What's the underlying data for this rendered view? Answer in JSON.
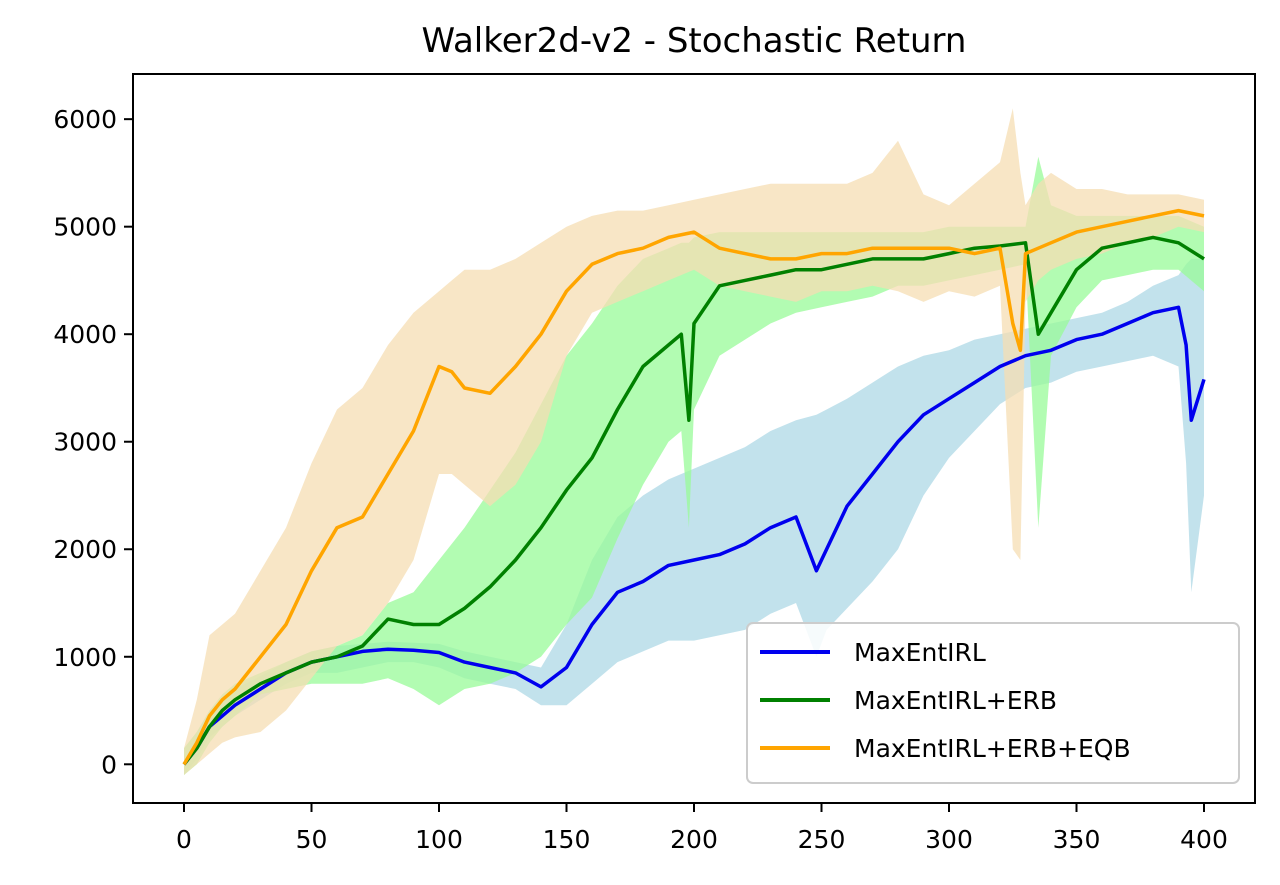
{
  "chart_data": {
    "type": "line",
    "title": "Walker2d-v2 - Stochastic Return",
    "xlabel": "",
    "ylabel": "",
    "xlim": [
      -20,
      420
    ],
    "ylim": [
      -360,
      6420
    ],
    "xticks": [
      0,
      50,
      100,
      150,
      200,
      250,
      300,
      350,
      400
    ],
    "yticks": [
      0,
      1000,
      2000,
      3000,
      4000,
      5000,
      6000
    ],
    "grid": false,
    "legend_position": "lower-right",
    "series": [
      {
        "name": "MaxEntIRL",
        "color": "#0000ee",
        "band_color": "#add8e6",
        "x": [
          0,
          5,
          10,
          15,
          20,
          30,
          40,
          50,
          60,
          70,
          80,
          90,
          100,
          110,
          120,
          130,
          140,
          150,
          160,
          170,
          180,
          190,
          200,
          210,
          220,
          230,
          240,
          248,
          252,
          260,
          270,
          280,
          290,
          300,
          310,
          320,
          330,
          340,
          350,
          360,
          370,
          380,
          390,
          393,
          395,
          400
        ],
        "y": [
          0,
          150,
          350,
          450,
          550,
          700,
          850,
          950,
          1000,
          1050,
          1070,
          1060,
          1040,
          950,
          900,
          850,
          720,
          900,
          1300,
          1600,
          1700,
          1850,
          1900,
          1950,
          2050,
          2200,
          2300,
          1800,
          2000,
          2400,
          2700,
          3000,
          3250,
          3400,
          3550,
          3700,
          3800,
          3850,
          3950,
          4000,
          4100,
          4200,
          4250,
          3900,
          3200,
          3580
        ],
        "upper": [
          150,
          300,
          500,
          600,
          700,
          820,
          950,
          1050,
          1100,
          1120,
          1140,
          1130,
          1120,
          1050,
          1000,
          950,
          900,
          1300,
          1900,
          2300,
          2500,
          2650,
          2750,
          2850,
          2950,
          3100,
          3200,
          3250,
          3300,
          3400,
          3550,
          3700,
          3800,
          3850,
          3950,
          4000,
          4050,
          4100,
          4150,
          4200,
          4300,
          4450,
          4550,
          4650,
          4700,
          4700
        ],
        "lower": [
          -100,
          50,
          250,
          350,
          450,
          600,
          750,
          850,
          850,
          900,
          950,
          950,
          900,
          800,
          750,
          700,
          550,
          550,
          750,
          950,
          1050,
          1150,
          1150,
          1200,
          1250,
          1400,
          1500,
          1000,
          1250,
          1450,
          1700,
          2000,
          2500,
          2850,
          3100,
          3350,
          3500,
          3550,
          3650,
          3700,
          3750,
          3800,
          3700,
          2800,
          1600,
          2500
        ]
      },
      {
        "name": "MaxEntIRL+ERB",
        "color": "#008000",
        "band_color": "#98fb98",
        "x": [
          0,
          5,
          10,
          15,
          20,
          30,
          40,
          50,
          60,
          70,
          80,
          90,
          100,
          110,
          120,
          130,
          140,
          150,
          160,
          170,
          180,
          190,
          195,
          198,
          200,
          210,
          220,
          230,
          240,
          250,
          260,
          270,
          280,
          290,
          300,
          310,
          320,
          330,
          335,
          340,
          350,
          360,
          370,
          380,
          390,
          400
        ],
        "y": [
          0,
          150,
          350,
          500,
          600,
          750,
          850,
          950,
          1000,
          1100,
          1350,
          1300,
          1300,
          1450,
          1650,
          1900,
          2200,
          2550,
          2850,
          3300,
          3700,
          3900,
          4000,
          3200,
          4100,
          4450,
          4500,
          4550,
          4600,
          4600,
          4650,
          4700,
          4700,
          4700,
          4750,
          4800,
          4820,
          4850,
          4000,
          4200,
          4600,
          4800,
          4850,
          4900,
          4850,
          4700
        ],
        "upper": [
          150,
          300,
          500,
          650,
          750,
          850,
          950,
          1050,
          1100,
          1200,
          1500,
          1600,
          1900,
          2200,
          2550,
          2900,
          3350,
          3800,
          4100,
          4450,
          4700,
          4800,
          4850,
          4850,
          4900,
          4950,
          4950,
          4950,
          4950,
          4950,
          4950,
          4950,
          4950,
          4950,
          5000,
          5000,
          5000,
          5000,
          5650,
          5200,
          5100,
          5100,
          5100,
          5100,
          5100,
          5000
        ],
        "lower": [
          -100,
          0,
          200,
          350,
          450,
          650,
          700,
          750,
          750,
          750,
          800,
          700,
          550,
          700,
          750,
          850,
          1000,
          1300,
          1550,
          2100,
          2600,
          3000,
          3100,
          2200,
          3300,
          3800,
          3950,
          4100,
          4200,
          4250,
          4300,
          4350,
          4450,
          4450,
          4500,
          4550,
          4600,
          4650,
          2200,
          3800,
          4250,
          4500,
          4550,
          4600,
          4600,
          4400
        ]
      },
      {
        "name": "MaxEntIRL+ERB+EQB",
        "color": "#ffa500",
        "band_color": "#f5deb3",
        "x": [
          0,
          5,
          10,
          15,
          20,
          30,
          40,
          50,
          60,
          70,
          80,
          90,
          100,
          105,
          110,
          120,
          130,
          140,
          150,
          160,
          170,
          180,
          190,
          200,
          210,
          220,
          230,
          240,
          250,
          260,
          270,
          280,
          290,
          300,
          310,
          320,
          325,
          328,
          330,
          335,
          340,
          350,
          360,
          370,
          380,
          390,
          400
        ],
        "y": [
          0,
          200,
          450,
          600,
          700,
          1000,
          1300,
          1800,
          2200,
          2300,
          2700,
          3100,
          3700,
          3650,
          3500,
          3450,
          3700,
          4000,
          4400,
          4650,
          4750,
          4800,
          4900,
          4950,
          4800,
          4750,
          4700,
          4700,
          4750,
          4750,
          4800,
          4800,
          4800,
          4800,
          4750,
          4800,
          4100,
          3850,
          4750,
          4800,
          4850,
          4950,
          5000,
          5050,
          5100,
          5150,
          5100
        ],
        "upper": [
          150,
          600,
          1200,
          1300,
          1400,
          1800,
          2200,
          2800,
          3300,
          3500,
          3900,
          4200,
          4400,
          4500,
          4600,
          4600,
          4700,
          4850,
          5000,
          5100,
          5150,
          5150,
          5200,
          5250,
          5300,
          5350,
          5400,
          5400,
          5400,
          5400,
          5500,
          5800,
          5300,
          5200,
          5400,
          5600,
          6100,
          5500,
          5200,
          5400,
          5500,
          5350,
          5350,
          5300,
          5300,
          5300,
          5250
        ],
        "lower": [
          -100,
          0,
          100,
          200,
          250,
          300,
          500,
          800,
          1100,
          1200,
          1500,
          1900,
          2700,
          2700,
          2600,
          2400,
          2600,
          3000,
          3800,
          4200,
          4300,
          4400,
          4500,
          4600,
          4450,
          4400,
          4350,
          4300,
          4400,
          4400,
          4450,
          4400,
          4300,
          4400,
          4350,
          4450,
          2000,
          1900,
          4300,
          4500,
          4600,
          4700,
          4750,
          4850,
          4900,
          5000,
          4950
        ]
      }
    ]
  }
}
